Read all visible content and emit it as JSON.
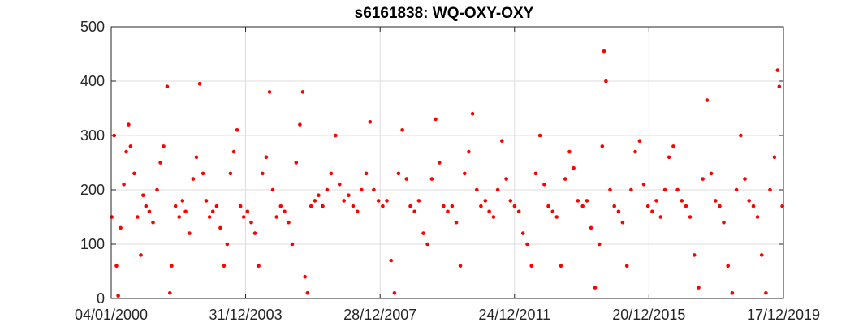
{
  "chart_data": {
    "type": "scatter",
    "title": "s6161838: WQ-OXY-OXY",
    "xlabel": "",
    "ylabel": "",
    "x_tick_labels": [
      "04/01/2000",
      "31/12/2003",
      "28/12/2007",
      "24/12/2011",
      "20/12/2015",
      "17/12/2019"
    ],
    "x_tick_dates": [
      "2000-01-04",
      "2003-12-31",
      "2007-12-28",
      "2011-12-24",
      "2015-12-20",
      "2019-12-17"
    ],
    "xlim": [
      "2000-01-04",
      "2019-12-17"
    ],
    "y_ticks": [
      0,
      100,
      200,
      300,
      400,
      500
    ],
    "ylim": [
      0,
      500
    ],
    "grid": true,
    "marker_color": "#ff0000",
    "series": [
      {
        "points": [
          [
            "2000-01-10",
            150
          ],
          [
            "2000-02-05",
            300
          ],
          [
            "2000-03-01",
            60
          ],
          [
            "2000-03-20",
            5
          ],
          [
            "2000-04-15",
            130
          ],
          [
            "2000-05-20",
            210
          ],
          [
            "2000-06-15",
            270
          ],
          [
            "2000-07-10",
            320
          ],
          [
            "2000-08-01",
            280
          ],
          [
            "2000-09-10",
            230
          ],
          [
            "2000-10-15",
            150
          ],
          [
            "2000-11-20",
            80
          ],
          [
            "2000-12-15",
            190
          ],
          [
            "2001-01-15",
            170
          ],
          [
            "2001-02-20",
            160
          ],
          [
            "2001-04-01",
            140
          ],
          [
            "2001-05-15",
            200
          ],
          [
            "2001-06-20",
            250
          ],
          [
            "2001-07-25",
            280
          ],
          [
            "2001-09-01",
            390
          ],
          [
            "2001-10-01",
            10
          ],
          [
            "2001-10-20",
            60
          ],
          [
            "2001-12-01",
            170
          ],
          [
            "2002-01-10",
            150
          ],
          [
            "2002-02-15",
            180
          ],
          [
            "2002-03-20",
            160
          ],
          [
            "2002-05-01",
            120
          ],
          [
            "2002-06-10",
            220
          ],
          [
            "2002-07-15",
            260
          ],
          [
            "2002-08-20",
            395
          ],
          [
            "2002-09-25",
            230
          ],
          [
            "2002-10-30",
            180
          ],
          [
            "2002-12-05",
            150
          ],
          [
            "2003-01-10",
            160
          ],
          [
            "2003-02-20",
            170
          ],
          [
            "2003-04-01",
            130
          ],
          [
            "2003-05-10",
            60
          ],
          [
            "2003-06-15",
            100
          ],
          [
            "2003-07-20",
            230
          ],
          [
            "2003-08-25",
            270
          ],
          [
            "2003-09-30",
            310
          ],
          [
            "2003-11-05",
            170
          ],
          [
            "2003-12-10",
            150
          ],
          [
            "2004-01-20",
            160
          ],
          [
            "2004-03-01",
            140
          ],
          [
            "2004-04-10",
            120
          ],
          [
            "2004-05-20",
            60
          ],
          [
            "2004-07-01",
            230
          ],
          [
            "2004-08-10",
            260
          ],
          [
            "2004-09-15",
            380
          ],
          [
            "2004-10-20",
            200
          ],
          [
            "2004-12-01",
            150
          ],
          [
            "2005-01-15",
            170
          ],
          [
            "2005-02-25",
            160
          ],
          [
            "2005-04-10",
            140
          ],
          [
            "2005-05-20",
            100
          ],
          [
            "2005-07-01",
            250
          ],
          [
            "2005-08-10",
            320
          ],
          [
            "2005-09-10",
            380
          ],
          [
            "2005-10-05",
            40
          ],
          [
            "2005-11-01",
            10
          ],
          [
            "2005-12-10",
            170
          ],
          [
            "2006-01-20",
            180
          ],
          [
            "2006-03-01",
            190
          ],
          [
            "2006-04-15",
            170
          ],
          [
            "2006-06-01",
            200
          ],
          [
            "2006-07-15",
            230
          ],
          [
            "2006-09-01",
            300
          ],
          [
            "2006-10-15",
            210
          ],
          [
            "2006-12-01",
            180
          ],
          [
            "2007-01-20",
            190
          ],
          [
            "2007-03-10",
            170
          ],
          [
            "2007-04-25",
            160
          ],
          [
            "2007-06-10",
            200
          ],
          [
            "2007-07-30",
            230
          ],
          [
            "2007-09-10",
            325
          ],
          [
            "2007-10-20",
            200
          ],
          [
            "2007-12-10",
            180
          ],
          [
            "2008-01-25",
            170
          ],
          [
            "2008-03-10",
            180
          ],
          [
            "2008-04-25",
            70
          ],
          [
            "2008-06-01",
            10
          ],
          [
            "2008-07-15",
            230
          ],
          [
            "2008-08-25",
            310
          ],
          [
            "2008-10-10",
            220
          ],
          [
            "2008-11-20",
            170
          ],
          [
            "2009-01-05",
            160
          ],
          [
            "2009-02-20",
            180
          ],
          [
            "2009-04-10",
            120
          ],
          [
            "2009-05-25",
            100
          ],
          [
            "2009-07-10",
            220
          ],
          [
            "2009-08-20",
            330
          ],
          [
            "2009-10-01",
            250
          ],
          [
            "2009-11-15",
            170
          ],
          [
            "2009-12-30",
            160
          ],
          [
            "2010-02-15",
            170
          ],
          [
            "2010-04-01",
            140
          ],
          [
            "2010-05-15",
            60
          ],
          [
            "2010-07-01",
            230
          ],
          [
            "2010-08-15",
            270
          ],
          [
            "2010-09-25",
            340
          ],
          [
            "2010-11-10",
            200
          ],
          [
            "2010-12-25",
            170
          ],
          [
            "2011-02-10",
            180
          ],
          [
            "2011-03-25",
            160
          ],
          [
            "2011-05-10",
            150
          ],
          [
            "2011-06-25",
            200
          ],
          [
            "2011-08-10",
            290
          ],
          [
            "2011-09-25",
            220
          ],
          [
            "2011-11-10",
            180
          ],
          [
            "2011-12-25",
            170
          ],
          [
            "2012-02-10",
            160
          ],
          [
            "2012-03-25",
            120
          ],
          [
            "2012-05-10",
            100
          ],
          [
            "2012-06-25",
            60
          ],
          [
            "2012-08-10",
            230
          ],
          [
            "2012-09-25",
            300
          ],
          [
            "2012-11-10",
            210
          ],
          [
            "2012-12-25",
            170
          ],
          [
            "2013-02-10",
            160
          ],
          [
            "2013-03-25",
            150
          ],
          [
            "2013-05-10",
            60
          ],
          [
            "2013-06-25",
            220
          ],
          [
            "2013-08-10",
            270
          ],
          [
            "2013-09-25",
            240
          ],
          [
            "2013-11-10",
            180
          ],
          [
            "2014-01-01",
            170
          ],
          [
            "2014-02-15",
            180
          ],
          [
            "2014-04-01",
            130
          ],
          [
            "2014-05-15",
            20
          ],
          [
            "2014-06-30",
            100
          ],
          [
            "2014-08-01",
            280
          ],
          [
            "2014-08-20",
            455
          ],
          [
            "2014-09-10",
            400
          ],
          [
            "2014-10-25",
            200
          ],
          [
            "2014-12-10",
            170
          ],
          [
            "2015-01-25",
            160
          ],
          [
            "2015-03-10",
            140
          ],
          [
            "2015-04-25",
            60
          ],
          [
            "2015-06-10",
            200
          ],
          [
            "2015-07-25",
            270
          ],
          [
            "2015-09-10",
            290
          ],
          [
            "2015-10-25",
            210
          ],
          [
            "2015-12-10",
            170
          ],
          [
            "2016-01-25",
            160
          ],
          [
            "2016-03-10",
            180
          ],
          [
            "2016-04-25",
            150
          ],
          [
            "2016-06-10",
            200
          ],
          [
            "2016-07-25",
            260
          ],
          [
            "2016-09-10",
            280
          ],
          [
            "2016-10-25",
            200
          ],
          [
            "2016-12-10",
            180
          ],
          [
            "2017-01-25",
            170
          ],
          [
            "2017-03-10",
            150
          ],
          [
            "2017-04-25",
            80
          ],
          [
            "2017-06-10",
            20
          ],
          [
            "2017-07-25",
            220
          ],
          [
            "2017-09-10",
            365
          ],
          [
            "2017-10-25",
            230
          ],
          [
            "2017-12-10",
            180
          ],
          [
            "2018-01-25",
            170
          ],
          [
            "2018-03-10",
            140
          ],
          [
            "2018-04-25",
            60
          ],
          [
            "2018-06-10",
            10
          ],
          [
            "2018-07-25",
            200
          ],
          [
            "2018-09-10",
            300
          ],
          [
            "2018-10-25",
            220
          ],
          [
            "2018-12-10",
            180
          ],
          [
            "2019-01-25",
            170
          ],
          [
            "2019-03-10",
            150
          ],
          [
            "2019-04-25",
            80
          ],
          [
            "2019-06-10",
            10
          ],
          [
            "2019-07-25",
            200
          ],
          [
            "2019-09-10",
            260
          ],
          [
            "2019-10-15",
            420
          ],
          [
            "2019-11-01",
            390
          ],
          [
            "2019-12-05",
            170
          ]
        ]
      }
    ]
  }
}
